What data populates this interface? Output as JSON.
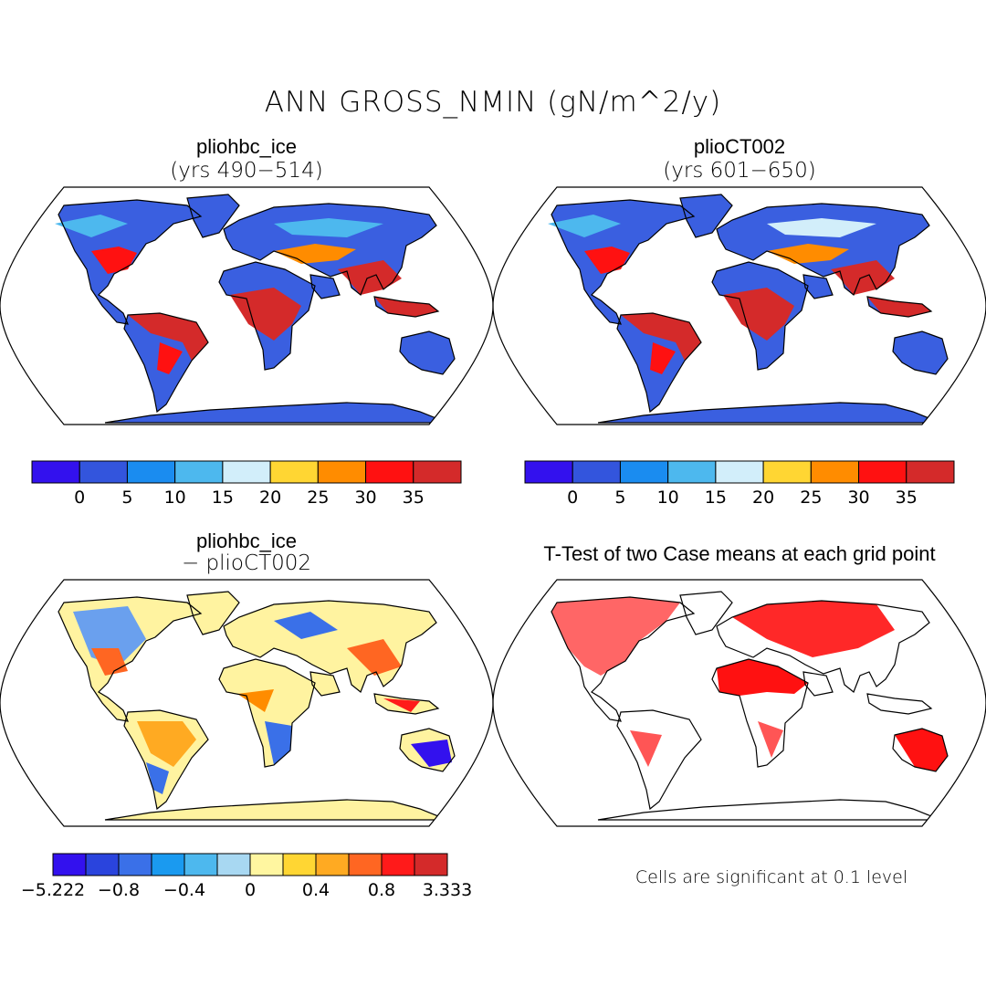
{
  "main_title": "ANN GROSS_NMIN (gN/m^2/y)",
  "panels": [
    {
      "title": "pliohbc_ice",
      "subtitle": "(yrs 490−514)"
    },
    {
      "title": "plioCT002",
      "subtitle": "(yrs 601−650)"
    },
    {
      "title": "pliohbc_ice",
      "subtitle": "− plioCT002"
    },
    {
      "title": "T-Test of two Case means at each grid point"
    }
  ],
  "colorbar_abs": {
    "colors": [
      "#3311ee",
      "#3355dd",
      "#1a8cf0",
      "#4db8ee",
      "#d2eefa",
      "#ffd633",
      "#ff8c00",
      "#ff1111",
      "#d42a2a"
    ],
    "labels": [
      "0",
      "5",
      "10",
      "15",
      "20",
      "25",
      "30",
      "35"
    ]
  },
  "colorbar_diff": {
    "colors": [
      "#3311ee",
      "#2a44dd",
      "#3a70e8",
      "#1a9af0",
      "#4db8ee",
      "#a8d8f2",
      "#fff6a0",
      "#ffd633",
      "#ffaa22",
      "#ff6622",
      "#ff1a1a",
      "#d42a2a"
    ],
    "labels": [
      "−5.222",
      "−0.8",
      "−0.4",
      "0",
      "0.4",
      "0.8",
      "3.333"
    ]
  },
  "significance_note": "Cells are significant at 0.1 level",
  "map_colors": {
    "land_abs": "#3a5fe0",
    "tropics_abs": "#d42a2a",
    "midband_abs": "#ff8c00",
    "diff_land": "#fff3a0",
    "diff_pos": "#ff6622",
    "diff_neg": "#3a70e8",
    "ttest": "#ff1111",
    "outline": "#000000"
  }
}
